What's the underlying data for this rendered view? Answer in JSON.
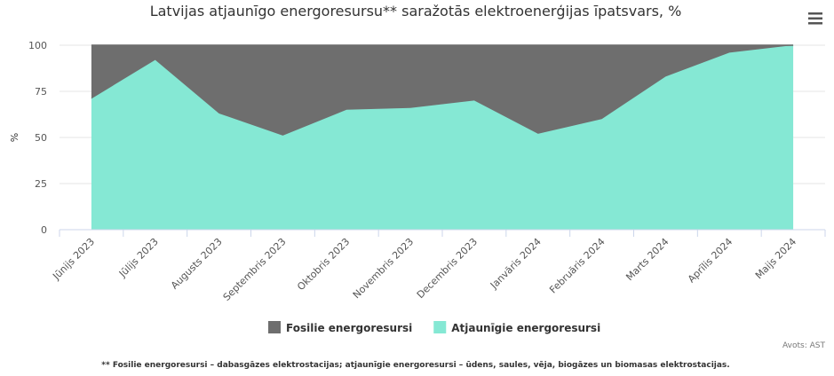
{
  "chart_data": {
    "type": "area",
    "stacking": "normal",
    "title": "Latvijas atjaunīgo energoresursu** saražotās elektroenerģijas īpatsvars, %",
    "y_label": "%",
    "categories": [
      "Jūnijs 2023",
      "Jūlijs 2023",
      "Augusts 2023",
      "Septembris 2023",
      "Oktobris 2023",
      "Novembris 2023",
      "Decembris 2023",
      "Janvāris 2024",
      "Februāris 2024",
      "Marts 2024",
      "Aprīlis 2024",
      "Maijs 2024"
    ],
    "series": [
      {
        "name": "Fosilie energoresursi",
        "color": "#6e6e6e",
        "values": [
          29,
          8,
          37,
          49,
          35,
          34,
          30,
          48,
          40,
          17,
          4,
          0
        ]
      },
      {
        "name": "Atjaunīgie energoresursi",
        "color": "#85e8d4",
        "values": [
          71,
          92,
          63,
          51,
          65,
          66,
          70,
          52,
          60,
          83,
          96,
          100
        ]
      }
    ],
    "ylim": [
      0,
      100
    ],
    "yticks": [
      0,
      25,
      50,
      75,
      100
    ],
    "grid": true,
    "credits": "Avots: AST",
    "footnote": "** Fosilie energoresursi – dabasgāzes elektrostacijas; atjaunīgie energoresursi – ūdens, saules, vēja, biogāzes un biomasas elektrostacijas."
  }
}
